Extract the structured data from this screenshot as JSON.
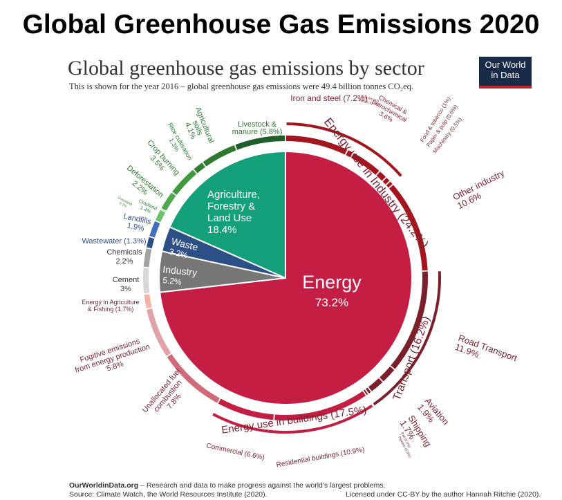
{
  "header": {
    "headline": "Global Greenhouse Gas Emissions 2020",
    "title": "Global greenhouse gas emissions by sector",
    "subtitle": "This is shown for the year 2016 – global greenhouse gas emissions were 49.4 billion tonnes CO₂eq."
  },
  "logo": {
    "line1": "Our World",
    "line2": "in Data",
    "bg_color": "#1a2b4a",
    "accent_color": "#c0282d"
  },
  "footer": {
    "site": "OurWorldinData.org",
    "tagline": " – Research and data to make progress against the world's largest problems.",
    "source": "Source: Climate Watch, the World Resources Institute (2020).",
    "license": "Licensed under CC-BY by the author Hannah Ritchie  (2020)."
  },
  "chart_data": {
    "type": "pie",
    "title": "Global greenhouse gas emissions by sector",
    "sectors": [
      {
        "name": "Energy",
        "value": 73.2,
        "label": "Energy",
        "value_label": "73.2%",
        "color": "#c41e44"
      },
      {
        "name": "Agriculture, Forestry & Land Use",
        "value": 18.4,
        "label_lines": [
          "Agriculture,",
          "Forestry &",
          "Land Use"
        ],
        "value_label": "18.4%",
        "color": "#13a07a"
      },
      {
        "name": "Waste",
        "value": 3.2,
        "label": "Waste",
        "value_label": "3.2%",
        "color": "#2c4f86"
      },
      {
        "name": "Industry",
        "value": 5.2,
        "label": "Industry",
        "value_label": "5.2%",
        "color": "#777777"
      }
    ],
    "subsectors": [
      {
        "group": "energy",
        "name": "Iron and steel",
        "value": 7.2,
        "label_lines": [
          "Iron and steel (7.2%)"
        ],
        "color": "#a4161f"
      },
      {
        "group": "energy",
        "name": "Non-ferrous metals",
        "value": 0.7,
        "label_lines": [
          "Non-ferrous",
          "metals (0.7%)"
        ],
        "color": "#a4161f"
      },
      {
        "group": "energy",
        "name": "Chemical & petrochemical",
        "value": 3.6,
        "label_lines": [
          "Chemical &",
          "petrochemical",
          "3.6%"
        ],
        "color": "#a4161f"
      },
      {
        "group": "energy",
        "name": "Food & tobacco",
        "value": 1.0,
        "label_lines": [
          "Food & tobacco (1%)"
        ],
        "color": "#a4161f"
      },
      {
        "group": "energy",
        "name": "Paper & pulp",
        "value": 0.6,
        "label_lines": [
          "Paper & pulp (0.6%)"
        ],
        "color": "#a4161f"
      },
      {
        "group": "energy",
        "name": "Machinery",
        "value": 0.5,
        "label_lines": [
          "Machinery (0.5%)"
        ],
        "color": "#a4161f"
      },
      {
        "group": "energy",
        "name": "Other industry",
        "value": 10.6,
        "label_lines": [
          "Other industry",
          "10.6%"
        ],
        "color": "#a4161f"
      },
      {
        "group": "energy",
        "name": "Road Transport",
        "value": 11.9,
        "label_lines": [
          "Road Transport",
          "11.9%"
        ],
        "color": "#7a1f2b"
      },
      {
        "group": "energy",
        "name": "Aviation",
        "value": 1.9,
        "label_lines": [
          "Aviation",
          "1.9%"
        ],
        "color": "#7a1f2b"
      },
      {
        "group": "energy",
        "name": "Shipping",
        "value": 1.7,
        "label_lines": [
          "Shipping",
          "1.7%"
        ],
        "color": "#7a1f2b"
      },
      {
        "group": "energy",
        "name": "Rail",
        "value": 0.4,
        "label_lines": [
          "Rail (0.4%)"
        ],
        "color": "#7a1f2b"
      },
      {
        "group": "energy",
        "name": "Pipeline",
        "value": 0.3,
        "label_lines": [
          "Pipeline (0.3%)"
        ],
        "color": "#7a1f2b"
      },
      {
        "group": "energy",
        "name": "Residential buildings",
        "value": 10.9,
        "label_lines": [
          "Residential buildings (10.9%)"
        ],
        "color": "#c41e44"
      },
      {
        "group": "energy",
        "name": "Commercial",
        "value": 6.6,
        "label_lines": [
          "Commercial  (6.6%)"
        ],
        "color": "#c41e44"
      },
      {
        "group": "energy",
        "name": "Unallocated fuel combustion",
        "value": 7.8,
        "label_lines": [
          "Unallocated fuel",
          "combustion",
          "7.8%"
        ],
        "color": "#cf6b78"
      },
      {
        "group": "energy",
        "name": "Fugitive emissions from energy production",
        "value": 5.8,
        "label_lines": [
          "Fugitive emissions",
          "from energy production",
          "5.8%"
        ],
        "color": "#e2a2a9"
      },
      {
        "group": "energy",
        "name": "Energy in Agriculture & Fishing",
        "value": 1.7,
        "label_lines": [
          "Energy in Agriculture",
          "& Fishing (1.7%)"
        ],
        "color": "#f5b5a8"
      },
      {
        "group": "industry",
        "name": "Cement",
        "value": 3.0,
        "label_lines": [
          "Cement",
          "3%"
        ],
        "color": "#d7d7d7"
      },
      {
        "group": "industry",
        "name": "Chemicals",
        "value": 2.2,
        "label_lines": [
          "Chemicals",
          "2.2%"
        ],
        "color": "#a3a3a3"
      },
      {
        "group": "waste",
        "name": "Wastewater",
        "value": 1.3,
        "label_lines": [
          "Wastewater (1.3%)"
        ],
        "color": "#2c4f86"
      },
      {
        "group": "waste",
        "name": "Landfills",
        "value": 1.9,
        "label_lines": [
          "Landfills",
          "1.9%"
        ],
        "color": "#3f6fbf"
      },
      {
        "group": "afolu",
        "name": "Cropland",
        "value": 1.4,
        "label_lines": [
          "Cropland",
          "1.4%"
        ],
        "color": "#6ac26a"
      },
      {
        "group": "afolu",
        "name": "Grassland",
        "value": 0.1,
        "label_lines": [
          "Grassland",
          "0.1%"
        ],
        "color": "#6ac26a"
      },
      {
        "group": "afolu",
        "name": "Deforestation",
        "value": 2.2,
        "label_lines": [
          "Deforestation",
          "2.2%"
        ],
        "color": "#4ea84e"
      },
      {
        "group": "afolu",
        "name": "Crop burning",
        "value": 3.5,
        "label_lines": [
          "Crop burning",
          "3.5%"
        ],
        "color": "#3f9a3f"
      },
      {
        "group": "afolu",
        "name": "Rice cultivation",
        "value": 1.3,
        "label_lines": [
          "Rice cultivation",
          "1.3%"
        ],
        "color": "#2f7f2f"
      },
      {
        "group": "afolu",
        "name": "Agricultural soils",
        "value": 4.1,
        "label_lines": [
          "Agricultural",
          "soils",
          "4.1%"
        ],
        "color": "#2d7a2d"
      },
      {
        "group": "afolu",
        "name": "Livestock & manure",
        "value": 5.8,
        "label_lines": [
          "Livestock &",
          "manure (5.8%)"
        ],
        "color": "#1f5e2c"
      }
    ],
    "energy_groups": [
      {
        "name": "Energy use in Industry",
        "value": 24.2,
        "label": "Energy use in Industry (24.2%)",
        "color": "#a4161f"
      },
      {
        "name": "Transport",
        "value": 16.2,
        "label": "Transport (16.2%)",
        "color": "#7a1f2b"
      },
      {
        "name": "Energy use in buildings",
        "value": 17.5,
        "label": "Energy use in buildings (17.5%)",
        "color": "#c41e44"
      }
    ]
  }
}
